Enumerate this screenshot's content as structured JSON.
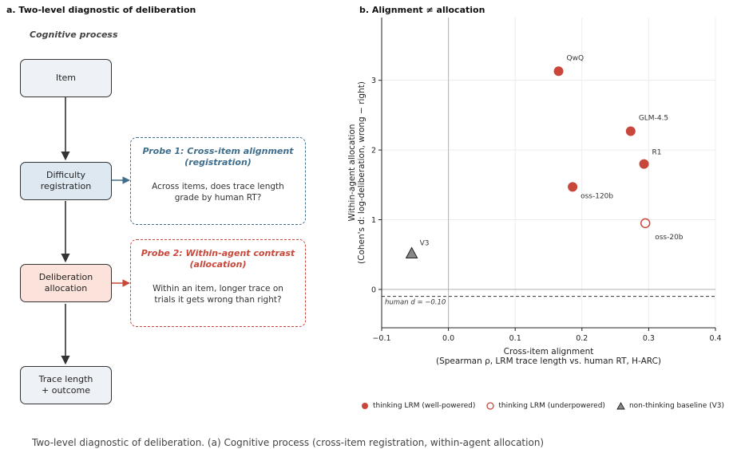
{
  "panel_a": {
    "title": "a.  Two-level diagnostic of deliberation",
    "section_label": "Cognitive process",
    "nodes": {
      "item": "Item",
      "difficulty": "Difficulty\nregistration",
      "allocation": "Deliberation\nallocation",
      "trace": "Trace length\n+ outcome"
    },
    "probe1": {
      "title": "Probe 1: Cross-item alignment\n(registration)",
      "text": "Across items, does trace length\ngrade by human RT?",
      "color": "#3f6e8c"
    },
    "probe2": {
      "title": "Probe 2: Within-agent contrast\n(allocation)",
      "text": "Within an item, longer trace on\ntrials it gets wrong than right?",
      "color": "#c8473a"
    },
    "colors": {
      "item_fill": "#eef1f5",
      "difficulty_fill": "#dde8f0",
      "allocation_fill": "#fbe3db",
      "trace_fill": "#eef1f5"
    }
  },
  "chart_data": {
    "type": "scatter",
    "title": "b.  Alignment ≠ allocation",
    "xlabel": "Cross-item alignment",
    "xlabel2": "(Spearman ρ, LRM trace length vs. human RT, H-ARC)",
    "ylabel": "Within-agent allocation",
    "ylabel2": "(Cohen's d: log-deliberation, wrong − right)",
    "xlim": [
      -0.1,
      0.4
    ],
    "ylim": [
      -0.55,
      3.9
    ],
    "xticks": [
      -0.1,
      0.0,
      0.1,
      0.2,
      0.3,
      0.4
    ],
    "xtick_labels": [
      "−0.1",
      "0.0",
      "0.1",
      "0.2",
      "0.3",
      "0.4"
    ],
    "yticks": [
      0,
      1,
      2,
      3
    ],
    "ytick_labels": [
      "0",
      "1",
      "2",
      "3"
    ],
    "grid": true,
    "reference_line": {
      "y": -0.1,
      "label": "human d = −0.10"
    },
    "points": [
      {
        "label": "QwQ",
        "x": 0.165,
        "y": 3.13,
        "group": "well"
      },
      {
        "label": "GLM-4.5",
        "x": 0.273,
        "y": 2.27,
        "group": "well"
      },
      {
        "label": "R1",
        "x": 0.293,
        "y": 1.8,
        "group": "well"
      },
      {
        "label": "oss-120b",
        "x": 0.186,
        "y": 1.47,
        "group": "well"
      },
      {
        "label": "oss-20b",
        "x": 0.295,
        "y": 0.95,
        "group": "under"
      },
      {
        "label": "V3",
        "x": -0.055,
        "y": 0.52,
        "group": "baseline"
      }
    ],
    "legend": [
      {
        "label": "thinking LRM (well-powered)",
        "marker": "filled-circle"
      },
      {
        "label": "thinking LRM (underpowered)",
        "marker": "open-circle"
      },
      {
        "label": "non-thinking baseline (V3)",
        "marker": "triangle"
      }
    ],
    "colors": {
      "accent": "#c8473a",
      "baseline_fill": "#888888"
    }
  },
  "caption": "Two-level diagnostic of deliberation. (a) Cognitive process (cross-item registration, within-agent allocation)"
}
